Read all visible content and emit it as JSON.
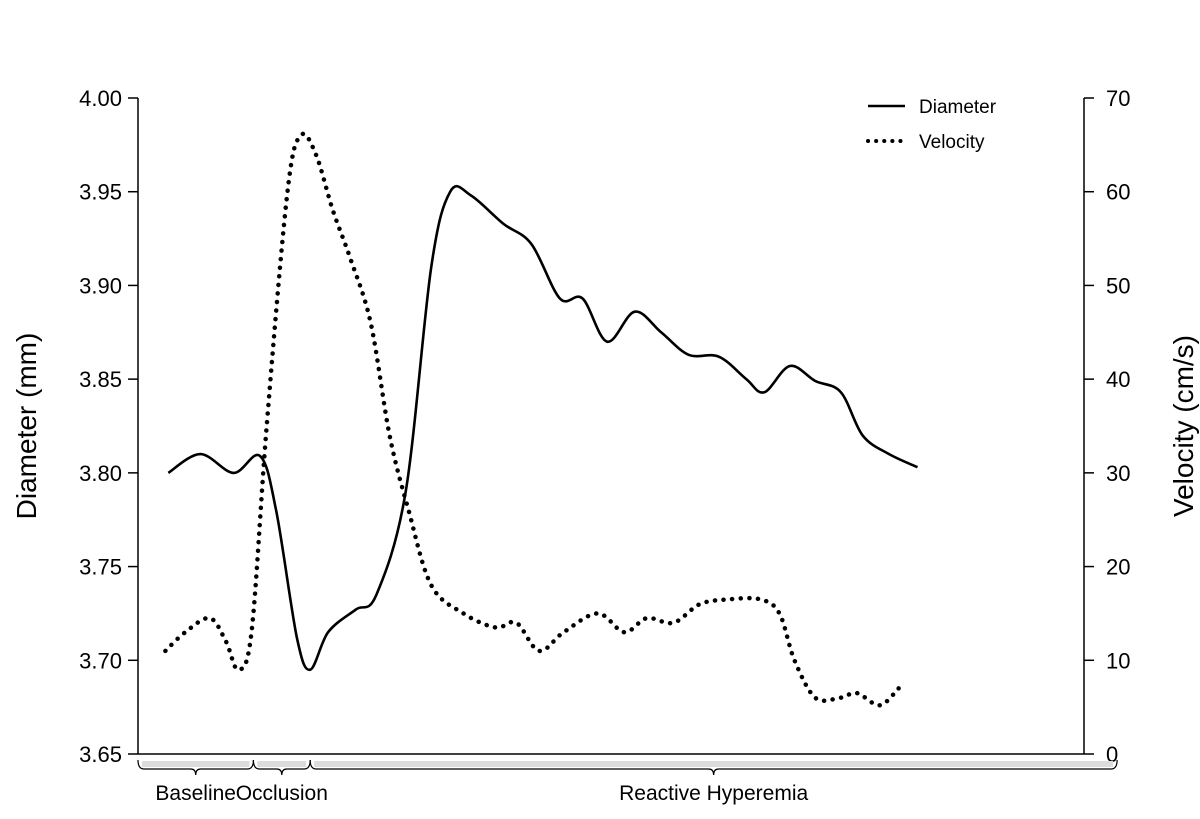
{
  "chart_data": {
    "type": "line",
    "title": "",
    "xlabel": "",
    "ylabel": "Diameter (mm)",
    "y2label": "Velocity (cm/s)",
    "ylim": [
      3.65,
      4.0
    ],
    "y2lim": [
      0,
      70
    ],
    "yticks": [
      "3.65",
      "3.70",
      "3.75",
      "3.80",
      "3.85",
      "3.90",
      "3.95",
      "4.00"
    ],
    "y2ticks": [
      "0",
      "10",
      "20",
      "30",
      "40",
      "50",
      "60",
      "70"
    ],
    "xlim": [
      0,
      100
    ],
    "legend": {
      "position": "top-right",
      "entries": [
        "Diameter",
        "Velocity"
      ]
    },
    "phases": [
      {
        "label": "Baseline",
        "start": 0,
        "end": 12.2
      },
      {
        "label": "Occlusion",
        "start": 12.2,
        "end": 18.2
      },
      {
        "label": "Reactive Hyperemia",
        "start": 18.2,
        "end": 103.5
      }
    ],
    "series": [
      {
        "name": "Diameter",
        "axis": "left",
        "style": "solid",
        "points": [
          [
            3.2,
            3.8
          ],
          [
            6.6,
            3.81
          ],
          [
            10.1,
            3.8
          ],
          [
            12.9,
            3.809
          ],
          [
            14.6,
            3.78
          ],
          [
            16.8,
            3.712
          ],
          [
            18.2,
            3.695
          ],
          [
            20.1,
            3.715
          ],
          [
            23.0,
            3.727
          ],
          [
            25.2,
            3.735
          ],
          [
            28.3,
            3.79
          ],
          [
            31.0,
            3.91
          ],
          [
            33.0,
            3.95
          ],
          [
            35.2,
            3.948
          ],
          [
            38.6,
            3.933
          ],
          [
            41.6,
            3.922
          ],
          [
            44.6,
            3.893
          ],
          [
            47.0,
            3.893
          ],
          [
            49.6,
            3.87
          ],
          [
            52.5,
            3.886
          ],
          [
            55.3,
            3.875
          ],
          [
            58.2,
            3.863
          ],
          [
            61.4,
            3.862
          ],
          [
            64.3,
            3.85
          ],
          [
            66.2,
            3.843
          ],
          [
            68.9,
            3.857
          ],
          [
            71.6,
            3.849
          ],
          [
            74.3,
            3.843
          ],
          [
            76.6,
            3.82
          ],
          [
            79.4,
            3.81
          ],
          [
            82.4,
            3.803
          ]
        ]
      },
      {
        "name": "Velocity",
        "axis": "right",
        "style": "dotted",
        "points": [
          [
            2.9,
            11
          ],
          [
            5.0,
            13
          ],
          [
            7.6,
            14.5
          ],
          [
            9.3,
            12
          ],
          [
            10.6,
            9
          ],
          [
            12.0,
            13
          ],
          [
            13.6,
            35
          ],
          [
            15.8,
            60
          ],
          [
            17.2,
            66
          ],
          [
            18.8,
            64
          ],
          [
            20.6,
            58
          ],
          [
            22.4,
            53
          ],
          [
            24.6,
            46
          ],
          [
            26.6,
            34
          ],
          [
            28.6,
            26
          ],
          [
            31.0,
            18
          ],
          [
            34.4,
            15
          ],
          [
            37.8,
            13.5
          ],
          [
            40.0,
            14
          ],
          [
            42.4,
            11
          ],
          [
            45.0,
            13
          ],
          [
            48.6,
            15
          ],
          [
            51.4,
            13
          ],
          [
            53.8,
            14.5
          ],
          [
            56.6,
            14
          ],
          [
            59.4,
            16
          ],
          [
            62.4,
            16.5
          ],
          [
            65.8,
            16.5
          ],
          [
            67.8,
            15
          ],
          [
            69.4,
            10
          ],
          [
            71.6,
            6
          ],
          [
            74.2,
            6
          ],
          [
            76.0,
            6.5
          ],
          [
            78.4,
            5.2
          ],
          [
            80.4,
            7
          ]
        ]
      }
    ]
  }
}
